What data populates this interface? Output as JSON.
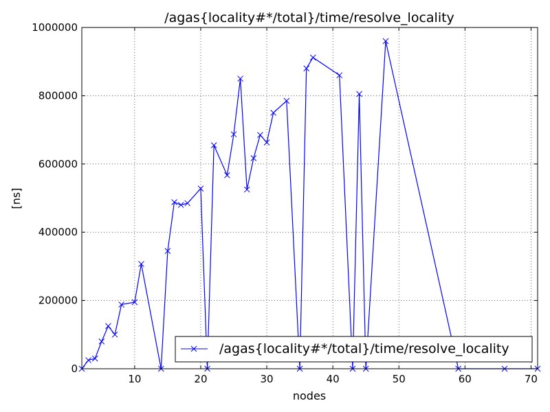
{
  "chart_data": {
    "type": "line",
    "title": "/agas{locality#*/total}/time/resolve_locality",
    "xlabel": "nodes",
    "ylabel": "[ns]",
    "xlim": [
      2,
      71
    ],
    "ylim": [
      0,
      1000000
    ],
    "xticks": [
      10,
      20,
      30,
      40,
      50,
      60,
      70
    ],
    "xtick_labels": [
      "10",
      "20",
      "30",
      "40",
      "50",
      "60",
      "70"
    ],
    "yticks": [
      0,
      200000,
      400000,
      600000,
      800000,
      1000000
    ],
    "ytick_labels": [
      "0",
      "200000",
      "400000",
      "600000",
      "800000",
      "1000000"
    ],
    "grid": true,
    "legend_position": "lower-right",
    "colors": {
      "series": "#0000ff"
    },
    "series": [
      {
        "name": "/agas{locality#*/total}/time/resolve_locality",
        "marker": "x",
        "x": [
          2,
          3,
          4,
          5,
          6,
          7,
          8,
          10,
          11,
          14,
          15,
          16,
          17,
          18,
          20,
          21,
          22,
          24,
          25,
          26,
          27,
          28,
          29,
          30,
          31,
          33,
          35,
          36,
          37,
          41,
          43,
          44,
          45,
          48,
          59,
          66,
          71
        ],
        "values": [
          0,
          25000,
          30000,
          80000,
          125000,
          100000,
          188000,
          195000,
          307000,
          0,
          345000,
          488000,
          480000,
          485000,
          528000,
          0,
          655000,
          567000,
          687000,
          850000,
          525000,
          617000,
          685000,
          663000,
          750000,
          785000,
          0,
          880000,
          912000,
          860000,
          0,
          805000,
          0,
          960000,
          0,
          0,
          0
        ]
      }
    ]
  }
}
